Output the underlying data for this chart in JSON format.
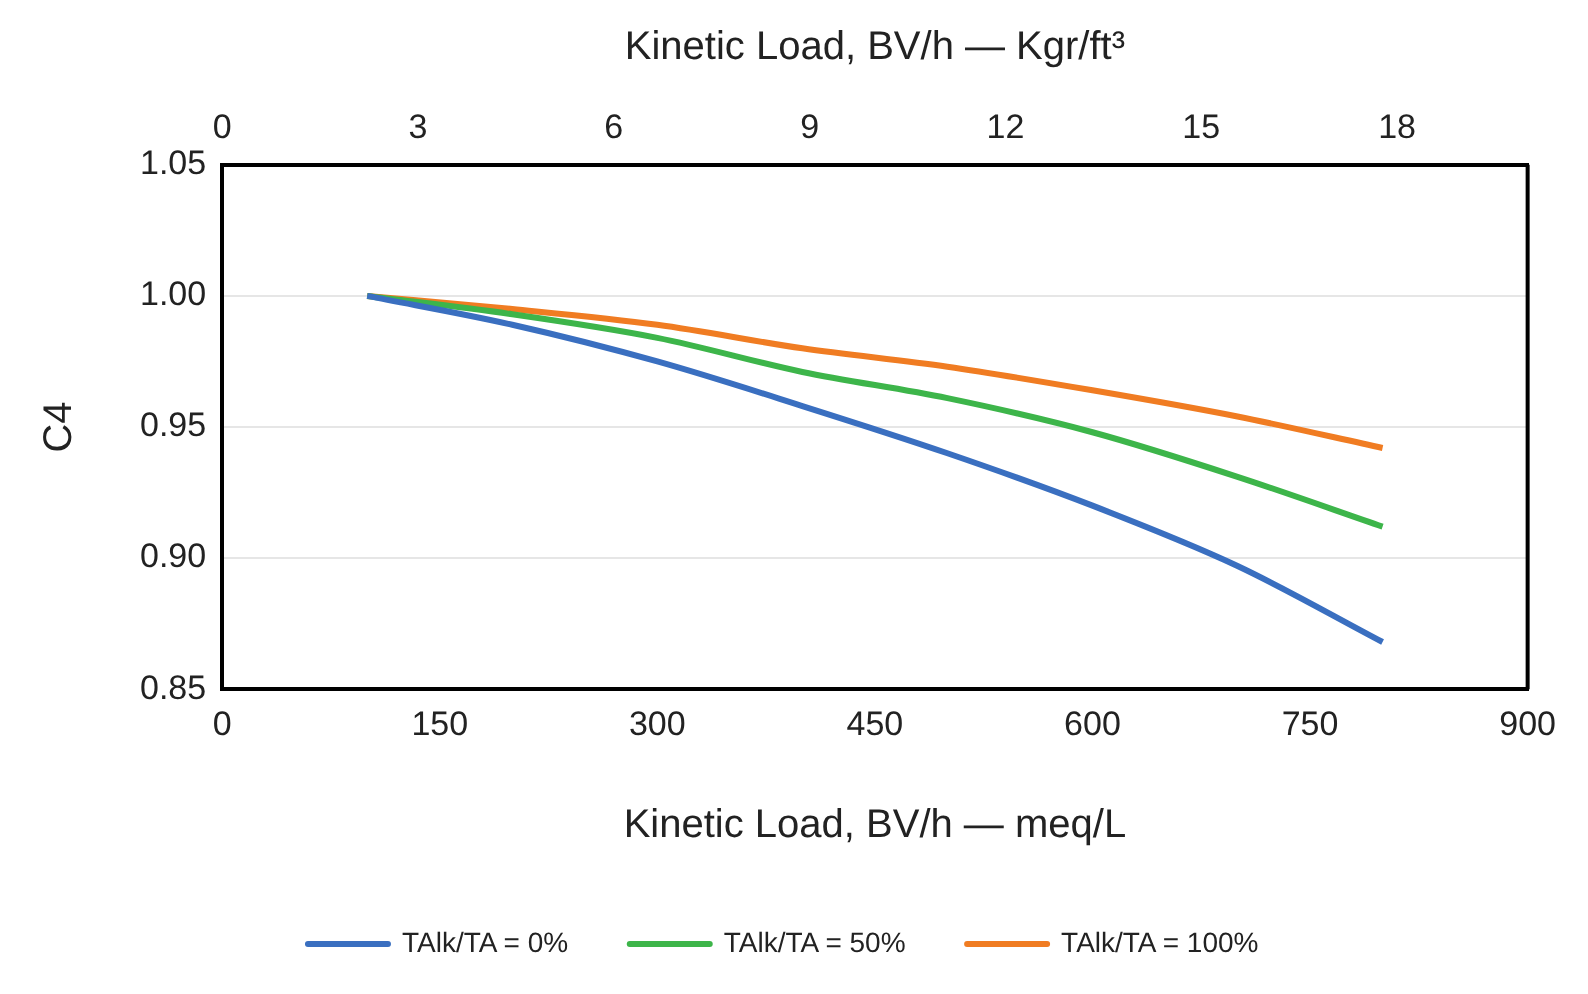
{
  "chart_data": {
    "type": "line",
    "xlabel": "Kinetic Load, BV/h — meq/L",
    "x2label": "Kinetic Load, BV/h — Kgr/ft³",
    "ylabel": "C4",
    "x": [
      100,
      200,
      300,
      400,
      500,
      600,
      700,
      800
    ],
    "xlim": [
      0,
      900
    ],
    "xticks": [
      0,
      150,
      300,
      450,
      600,
      750,
      900
    ],
    "x2lim": [
      0,
      20
    ],
    "x2ticks": [
      0,
      3,
      6,
      9,
      12,
      15,
      18
    ],
    "ylim": [
      0.85,
      1.05
    ],
    "yticks": [
      {
        "value": 0.85,
        "label": "0.85"
      },
      {
        "value": 0.9,
        "label": "0.90"
      },
      {
        "value": 0.95,
        "label": "0.95"
      },
      {
        "value": 1.0,
        "label": "1.00"
      },
      {
        "value": 1.05,
        "label": "1.05"
      }
    ],
    "grid": "y",
    "legend": "bottom",
    "marker": "none",
    "line_style": "solid",
    "series": [
      {
        "name": "TAlk/TA = 0%",
        "color": "#3a6fc0",
        "values": [
          1.0,
          0.989,
          0.975,
          0.958,
          0.94,
          0.92,
          0.897,
          0.868
        ]
      },
      {
        "name": "TAlk/TA = 50%",
        "color": "#3db54a",
        "values": [
          1.0,
          0.993,
          0.984,
          0.971,
          0.961,
          0.948,
          0.931,
          0.912
        ]
      },
      {
        "name": "TAlk/TA = 100%",
        "color": "#f07c22",
        "values": [
          1.0,
          0.995,
          0.989,
          0.98,
          0.973,
          0.964,
          0.954,
          0.942
        ]
      }
    ]
  }
}
